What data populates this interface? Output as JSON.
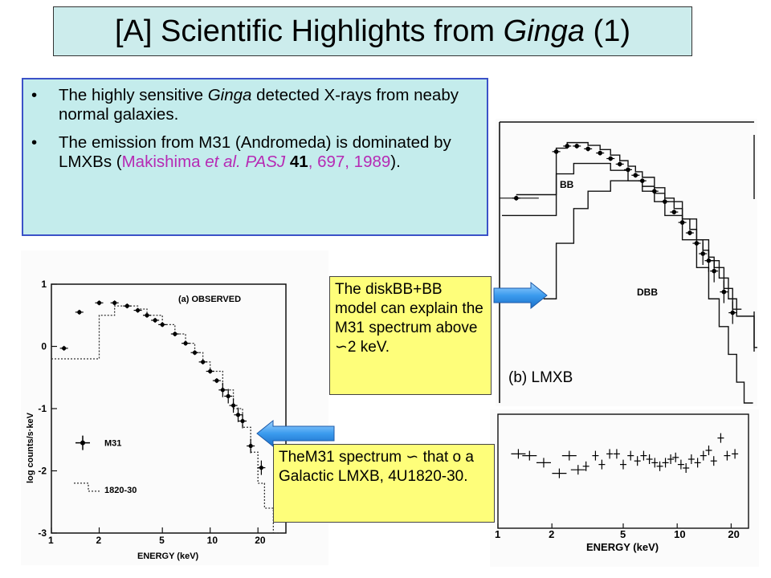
{
  "title": {
    "prefix": "[A] Scientific Highlights from ",
    "italic": "Ginga",
    "suffix": " (1)"
  },
  "bullets": {
    "b1": {
      "t1": "The highly sensitive ",
      "i1": "Ginga",
      "t2": "  detected X-rays from neaby normal galaxies."
    },
    "b2": {
      "t1": "The emission from M31 (Andromeda) is dominated by LMXBs (",
      "m1": "Makishima ",
      "i1": "et al.",
      "sp": " ",
      "i2": "PASJ",
      "b41": " 41",
      "m2": ", 697, 1989",
      "t2": ")."
    }
  },
  "callout_right": "The diskBB+BB model can explain the M31 spectrum above ∽2 keV.",
  "callout_left": "TheM31 spectrum ∽ that o a Galactic LMXB, 4U1820-30.",
  "chart_data": [
    {
      "type": "line",
      "panel": "left",
      "xlabel": "ENERGY  (keV)",
      "ylabel": "log counts/s·keV",
      "xscale": "log",
      "xlim": [
        1,
        30
      ],
      "ylim": [
        -3,
        1
      ],
      "xticks": [
        "1",
        "2",
        "5",
        "10",
        "20"
      ],
      "yticks": [
        "-3",
        "-2",
        "-1",
        "0",
        "1"
      ],
      "annotation": "(a) OBSERVED",
      "legend": [
        "M31",
        "1820-30"
      ],
      "series": [
        {
          "name": "M31",
          "x": [
            1.2,
            1.5,
            2.0,
            2.5,
            3.0,
            3.5,
            4.0,
            4.5,
            5.0,
            6.0,
            7.0,
            8.0,
            9.0,
            10.0,
            11.0,
            12.0,
            13.0,
            14.0,
            15.0,
            16.0,
            18.0,
            21.0
          ],
          "y": [
            -0.03,
            0.55,
            0.7,
            0.7,
            0.65,
            0.58,
            0.5,
            0.42,
            0.35,
            0.2,
            0.05,
            -0.1,
            -0.25,
            -0.4,
            -0.55,
            -0.7,
            -0.8,
            -0.95,
            -1.1,
            -1.2,
            -1.6,
            -1.95
          ]
        },
        {
          "name": "1820-30",
          "x": [
            1.0,
            1.45,
            2.0,
            2.5,
            3.0,
            3.5,
            4.0,
            5.0,
            6.0,
            7.0,
            8.0,
            9.0,
            10.0,
            12.0,
            14.0,
            16.0,
            18.0,
            20.0,
            22.0,
            25.0
          ],
          "y": [
            -0.2,
            -0.2,
            0.5,
            0.65,
            0.65,
            0.6,
            0.5,
            0.35,
            0.2,
            0.05,
            -0.1,
            -0.25,
            -0.4,
            -0.7,
            -1.0,
            -1.3,
            -1.7,
            -2.2,
            -2.6,
            -3.0
          ]
        }
      ]
    },
    {
      "type": "line",
      "panel": "right",
      "xlabel": "ENERGY  (keV)",
      "xscale": "log",
      "xlim": [
        1,
        25
      ],
      "ylim": [
        -3,
        1
      ],
      "xticks": [
        "1",
        "2",
        "5",
        "10",
        "20"
      ],
      "annotation": "(b)  LMXB",
      "labels": [
        "BB",
        "DBB"
      ],
      "series": [
        {
          "name": "M31",
          "x": [
            1.2,
            2.0,
            2.3,
            2.6,
            3.0,
            3.5,
            4.0,
            4.5,
            5.0,
            5.5,
            6.0,
            7.0,
            8.0,
            9.0,
            10.0,
            11.0,
            12.0,
            13.0,
            14.0,
            15.0,
            17.0,
            19.0
          ],
          "y": [
            -0.05,
            0.62,
            0.7,
            0.7,
            0.66,
            0.6,
            0.52,
            0.44,
            0.36,
            0.28,
            0.2,
            0.05,
            -0.1,
            -0.25,
            -0.4,
            -0.55,
            -0.7,
            -0.85,
            -0.95,
            -1.1,
            -1.4,
            -1.7
          ]
        },
        {
          "name": "DBB",
          "x": [
            1.0,
            1.6,
            2.0,
            2.5,
            3.0,
            4.0,
            5.0,
            6.0,
            7.0,
            8.0,
            10.0,
            12.0,
            14.0,
            16.0,
            18.0,
            20.0,
            22.0
          ],
          "y": [
            -0.3,
            -0.3,
            0.3,
            0.45,
            0.45,
            0.35,
            0.2,
            0.05,
            -0.1,
            -0.3,
            -0.65,
            -1.05,
            -1.5,
            -1.9,
            -2.3,
            -2.7,
            -3.0
          ]
        },
        {
          "name": "BB",
          "x": [
            1.7,
            2.0,
            2.5,
            3.0,
            4.0,
            5.0,
            6.0,
            7.0,
            8.0,
            10.0,
            12.0,
            14.0,
            16.0,
            18.0,
            20.0,
            25.0
          ],
          "y": [
            -1.5,
            -0.7,
            -0.2,
            0.05,
            0.2,
            0.2,
            0.12,
            0.02,
            -0.1,
            -0.35,
            -0.65,
            -0.95,
            -1.2,
            -1.5,
            -1.75,
            -2.2
          ]
        }
      ]
    },
    {
      "type": "scatter",
      "panel": "residuals",
      "xlabel": "ENERGY  (keV)",
      "xscale": "log",
      "xticks": [
        "1",
        "2",
        "5",
        "10",
        "20"
      ],
      "x": [
        1.3,
        1.5,
        1.8,
        2.2,
        2.5,
        2.8,
        3.1,
        3.5,
        3.8,
        4.2,
        4.6,
        5.0,
        5.5,
        6.0,
        6.5,
        7.0,
        7.5,
        8.0,
        8.6,
        9.2,
        9.8,
        10.5,
        11.2,
        12.0,
        13.0,
        14.0,
        15.0,
        16.0,
        17.5,
        19.0,
        21.0
      ],
      "y": [
        0.3,
        0.2,
        -0.2,
        -0.8,
        0.2,
        -0.6,
        -0.4,
        0.2,
        -0.3,
        0.3,
        0.3,
        -0.3,
        0.2,
        -0.1,
        0.2,
        0.0,
        -0.2,
        -0.4,
        -0.2,
        0.0,
        0.1,
        -0.3,
        -0.5,
        0.0,
        -0.2,
        0.2,
        0.5,
        -0.1,
        1.2,
        0.2,
        0.3
      ]
    }
  ]
}
